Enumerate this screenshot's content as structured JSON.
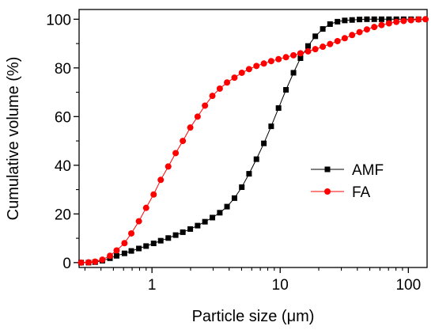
{
  "chart_data": {
    "type": "scatter",
    "xlabel": "Particle size (μm)",
    "ylabel": "Cumulative volume (%)",
    "xscale": "log",
    "xlim": [
      0.27,
      140
    ],
    "ylim": [
      -2,
      104
    ],
    "xticks": [
      {
        "value": 1,
        "label": "1"
      },
      {
        "value": 10,
        "label": "10"
      },
      {
        "value": 100,
        "label": "100"
      }
    ],
    "yticks": [
      {
        "value": 0,
        "label": "0"
      },
      {
        "value": 20,
        "label": "20"
      },
      {
        "value": 40,
        "label": "40"
      },
      {
        "value": 60,
        "label": "60"
      },
      {
        "value": 80,
        "label": "80"
      },
      {
        "value": 100,
        "label": "100"
      }
    ],
    "legend": {
      "position": "center-right"
    },
    "grid": false,
    "series": [
      {
        "name": "AMF",
        "color": "#000000",
        "marker": "square",
        "x": [
          0.28,
          0.32,
          0.36,
          0.41,
          0.47,
          0.53,
          0.61,
          0.69,
          0.79,
          0.9,
          1.03,
          1.17,
          1.34,
          1.53,
          1.74,
          1.99,
          2.27,
          2.59,
          2.96,
          3.38,
          3.85,
          4.4,
          5.02,
          5.72,
          6.53,
          7.46,
          8.51,
          9.71,
          11.1,
          12.7,
          14.4,
          16.5,
          18.8,
          21.5,
          24.5,
          28.0,
          31.9,
          36.4,
          41.6,
          47.5,
          54.2,
          61.8,
          70.6,
          80.6,
          91.9,
          105,
          120
        ],
        "y": [
          0,
          0,
          0.2,
          0.8,
          1.8,
          2.8,
          3.8,
          4.8,
          5.8,
          6.8,
          7.9,
          9.0,
          10.1,
          11.3,
          12.5,
          13.8,
          15.2,
          16.8,
          18.5,
          20.5,
          23.0,
          26.5,
          31.0,
          36.5,
          42.5,
          49.0,
          56.0,
          63.5,
          71.0,
          78.0,
          84.0,
          89.0,
          93.0,
          96.0,
          98.0,
          99.0,
          99.5,
          99.7,
          99.9,
          100,
          100,
          100,
          100,
          100,
          100,
          100,
          100
        ]
      },
      {
        "name": "FA",
        "color": "#ff0000",
        "marker": "circle",
        "x": [
          0.28,
          0.32,
          0.36,
          0.41,
          0.47,
          0.53,
          0.61,
          0.69,
          0.79,
          0.9,
          1.03,
          1.17,
          1.34,
          1.53,
          1.74,
          1.99,
          2.27,
          2.59,
          2.96,
          3.38,
          3.85,
          4.4,
          5.02,
          5.72,
          6.53,
          7.46,
          8.51,
          9.71,
          11.1,
          12.7,
          14.4,
          16.5,
          18.8,
          21.5,
          24.5,
          28.0,
          31.9,
          36.4,
          41.6,
          47.5,
          54.2,
          61.8,
          70.6,
          80.6,
          91.9,
          105,
          120,
          136
        ],
        "y": [
          0,
          0.1,
          0.4,
          1.2,
          2.8,
          5.0,
          8.0,
          12.0,
          17.0,
          22.5,
          28.0,
          34.0,
          39.5,
          45.0,
          50.0,
          55.5,
          60.0,
          64.5,
          68.5,
          71.5,
          74.0,
          76.0,
          78.0,
          79.5,
          80.8,
          81.8,
          82.8,
          83.6,
          84.4,
          85.2,
          86.0,
          86.8,
          87.7,
          88.7,
          89.8,
          91.0,
          92.2,
          93.5,
          94.7,
          95.8,
          96.8,
          97.6,
          98.3,
          98.9,
          99.3,
          99.6,
          99.9,
          100
        ]
      }
    ]
  }
}
